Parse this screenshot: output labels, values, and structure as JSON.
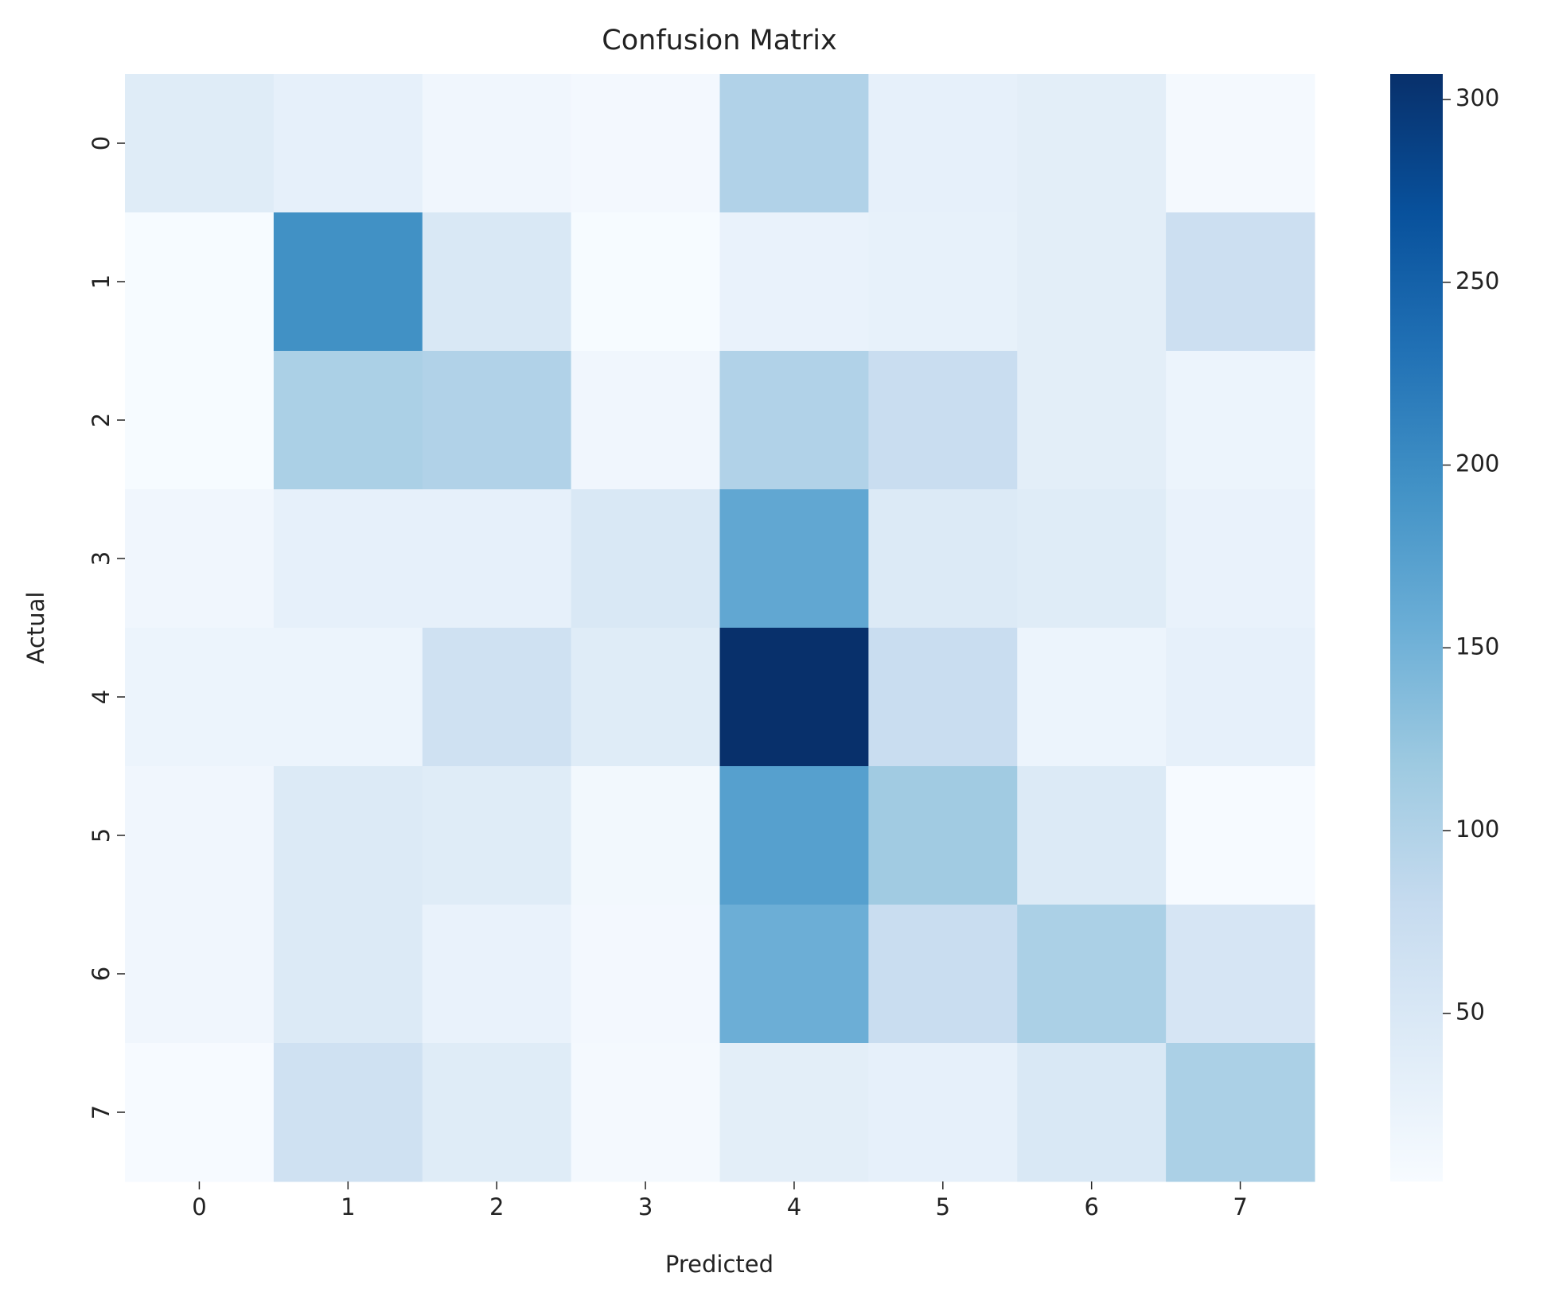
{
  "chart_data": {
    "type": "heatmap",
    "title": "Confusion Matrix",
    "x_label": "Predicted",
    "y_label": "Actual",
    "x_categories": [
      "0",
      "1",
      "2",
      "3",
      "4",
      "5",
      "6",
      "7"
    ],
    "y_categories": [
      "0",
      "1",
      "2",
      "3",
      "4",
      "5",
      "6",
      "7"
    ],
    "values": [
      [
        40,
        30,
        15,
        10,
        100,
        30,
        35,
        8
      ],
      [
        5,
        195,
        50,
        5,
        25,
        28,
        35,
        70
      ],
      [
        5,
        105,
        100,
        15,
        100,
        75,
        35,
        20
      ],
      [
        15,
        30,
        30,
        50,
        165,
        45,
        40,
        25
      ],
      [
        20,
        20,
        65,
        40,
        307,
        75,
        20,
        30
      ],
      [
        15,
        45,
        40,
        12,
        175,
        115,
        45,
        6
      ],
      [
        15,
        45,
        25,
        10,
        155,
        75,
        105,
        55
      ],
      [
        6,
        65,
        40,
        8,
        35,
        30,
        50,
        105
      ]
    ],
    "colormap": "Blues",
    "clim": [
      4,
      307
    ],
    "cticks": [
      50,
      100,
      150,
      200,
      250,
      300
    ]
  }
}
